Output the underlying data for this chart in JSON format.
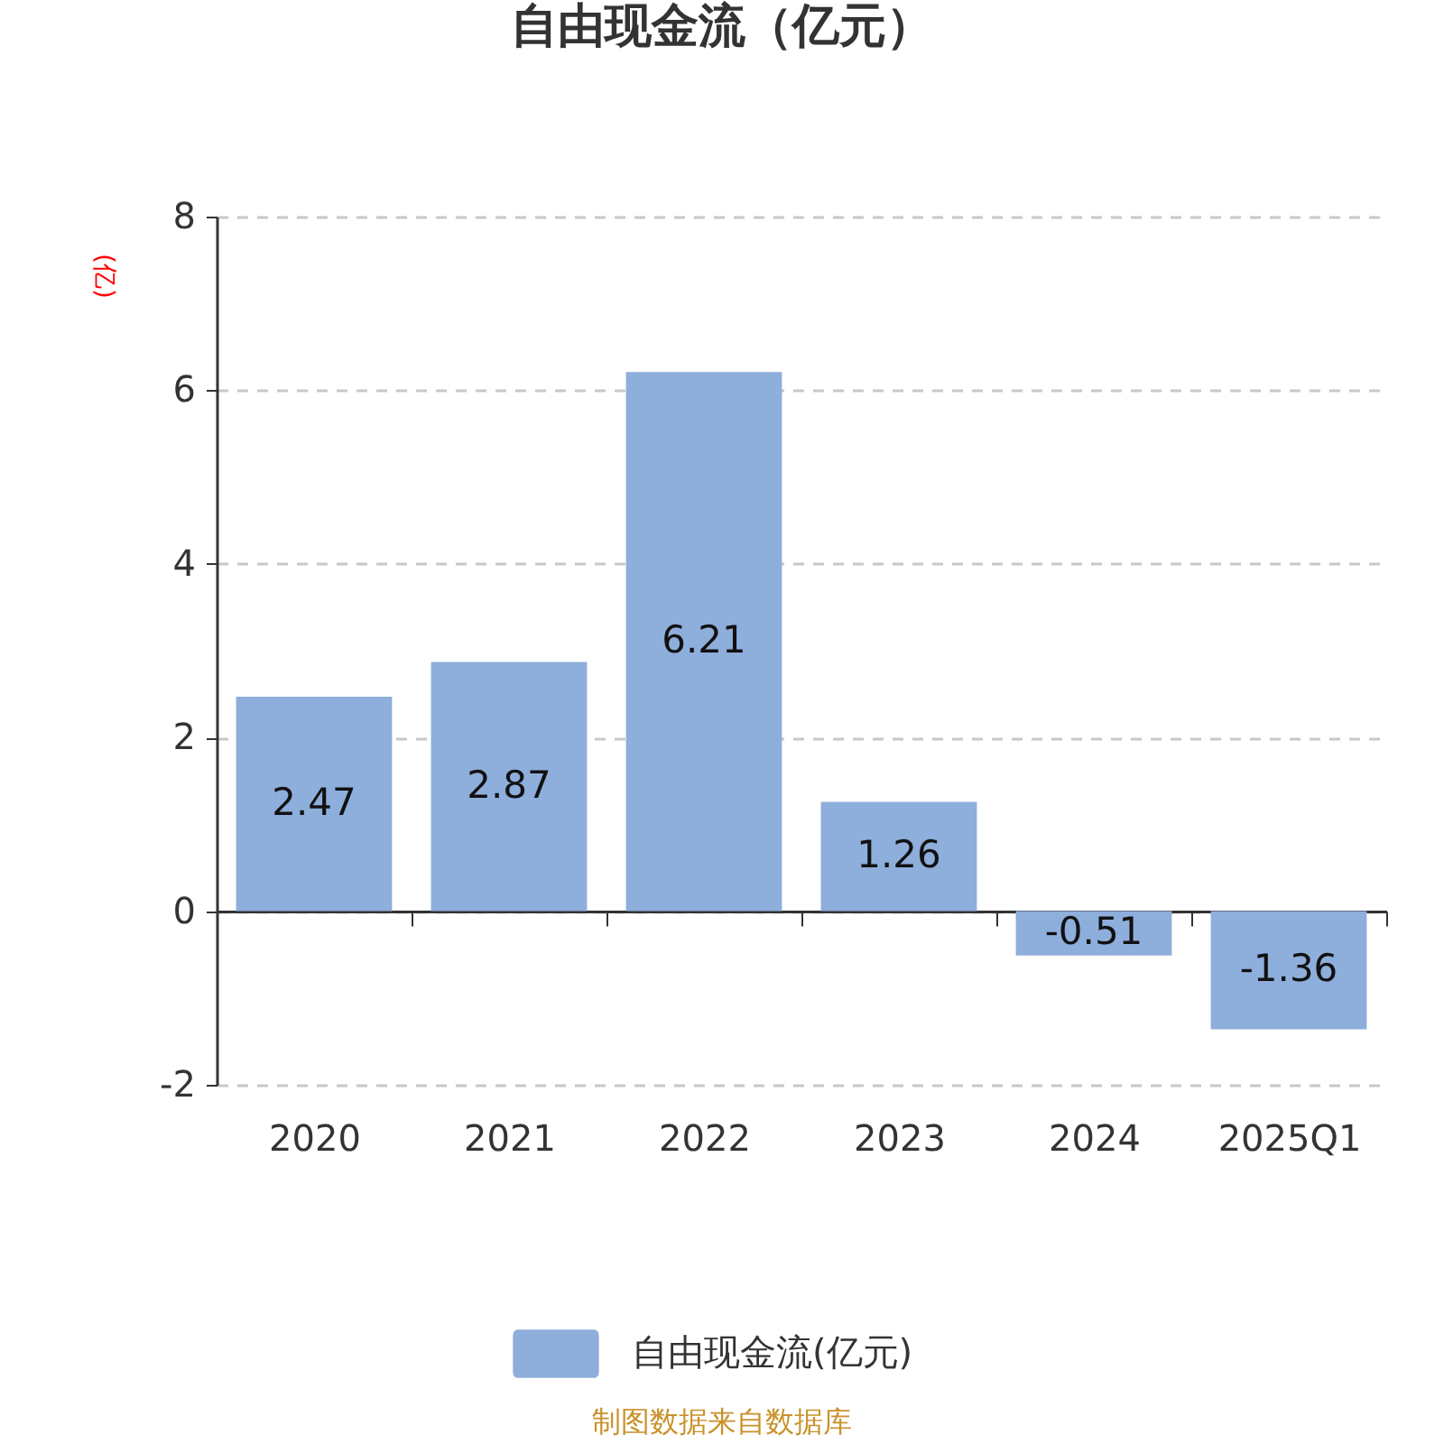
{
  "chart_data": {
    "type": "bar",
    "title": "自由现金流（亿元）",
    "ylabel": "(亿)",
    "categories": [
      "2020",
      "2021",
      "2022",
      "2023",
      "2024",
      "2025Q1"
    ],
    "series": [
      {
        "name": "自由现金流(亿元)",
        "color": "#8eaedb",
        "values": [
          2.47,
          2.87,
          6.21,
          1.26,
          -0.51,
          -1.36
        ]
      }
    ],
    "ylim": [
      -2,
      8
    ],
    "yticks": [
      -2,
      0,
      2,
      4,
      6,
      8
    ],
    "grid": "y",
    "legend": "bottom",
    "data_labels": true,
    "annotations": [
      "制图数据来自数据库"
    ]
  }
}
